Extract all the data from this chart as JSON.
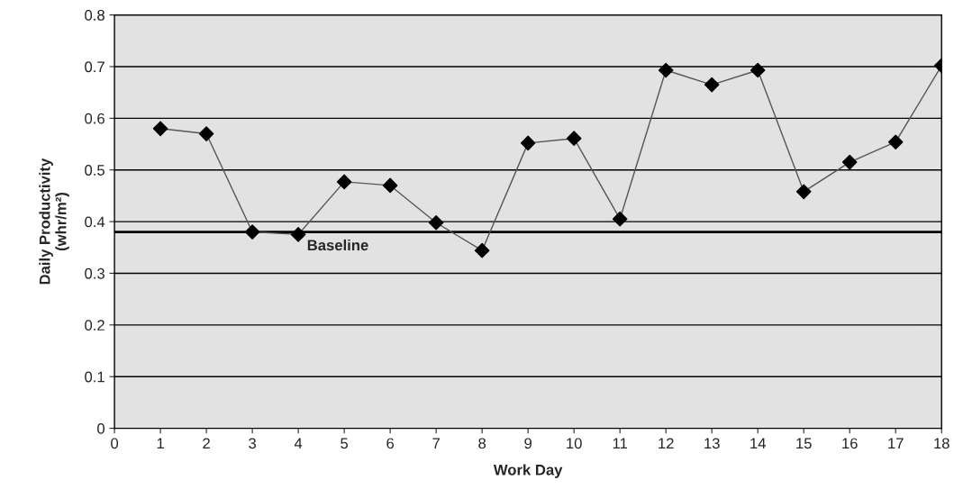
{
  "chart_data": {
    "type": "line",
    "xlabel": "Work Day",
    "ylabel": "Daily Productivity\n(whr/m²)",
    "x": [
      1,
      2,
      3,
      4,
      5,
      6,
      7,
      8,
      9,
      10,
      11,
      12,
      13,
      14,
      15,
      16,
      17,
      18
    ],
    "series": [
      {
        "color": "#000000",
        "values": [
          0.58,
          0.57,
          0.38,
          0.375,
          0.477,
          0.47,
          0.398,
          0.344,
          0.552,
          0.561,
          0.405,
          0.693,
          0.665,
          0.693,
          0.458,
          0.515,
          0.554,
          0.702
        ]
      }
    ],
    "xlim": [
      0,
      18
    ],
    "xticks": [
      0,
      1,
      2,
      3,
      4,
      5,
      6,
      7,
      8,
      9,
      10,
      11,
      12,
      13,
      14,
      15,
      16,
      17,
      18
    ],
    "ylim": [
      0,
      0.8
    ],
    "yticks": [
      0,
      0.1,
      0.2,
      0.3,
      0.4,
      0.5,
      0.6,
      0.7,
      0.8
    ],
    "ref_lines": [
      {
        "axis": "y",
        "value": 0.38,
        "label": "Baseline",
        "color": "#000000"
      }
    ],
    "grid": "y",
    "marker": "diamond",
    "line_style": "solid"
  }
}
